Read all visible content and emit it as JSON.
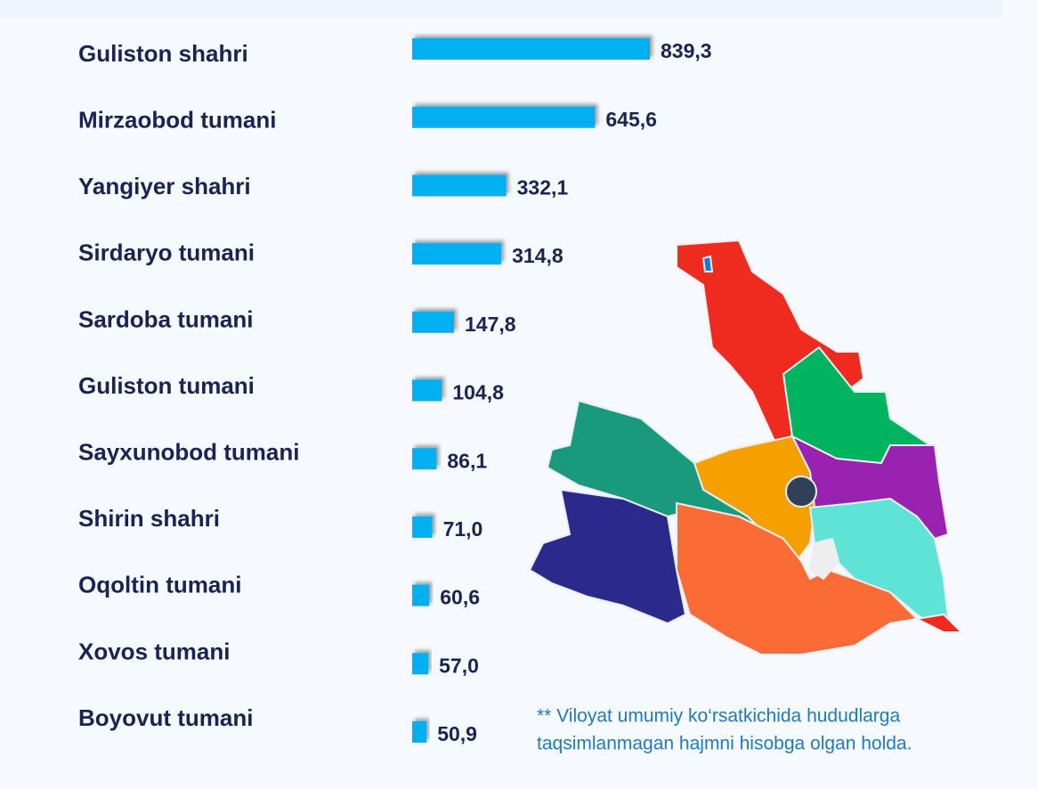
{
  "chart_data": {
    "type": "bar",
    "orientation": "horizontal",
    "categories": [
      "Guliston shahri",
      "Mirzaobod tumani",
      "Yangiyer shahri",
      "Sirdaryo tumani",
      "Sardoba tumani",
      "Guliston tumani",
      "Sayxunobod tumani",
      "Shirin shahri",
      "Oqoltin tumani",
      "Xovos tumani",
      "Boyovut tumani"
    ],
    "values": [
      839.3,
      645.6,
      332.1,
      314.8,
      147.8,
      104.8,
      86.1,
      71.0,
      60.6,
      57.0,
      50.9
    ],
    "value_labels": [
      "839,3",
      "645,6",
      "332,1",
      "314,8",
      "147,8",
      "104,8",
      "86,1",
      "71,0",
      "60,6",
      "57,0",
      "50,9"
    ],
    "color": "#00b0f0",
    "annotations": [
      "** Viloyat umumiy ko‘rsatkichida hududlarga",
      "taqsimlanmagan hajmni hisobga olgan holda."
    ]
  }
}
